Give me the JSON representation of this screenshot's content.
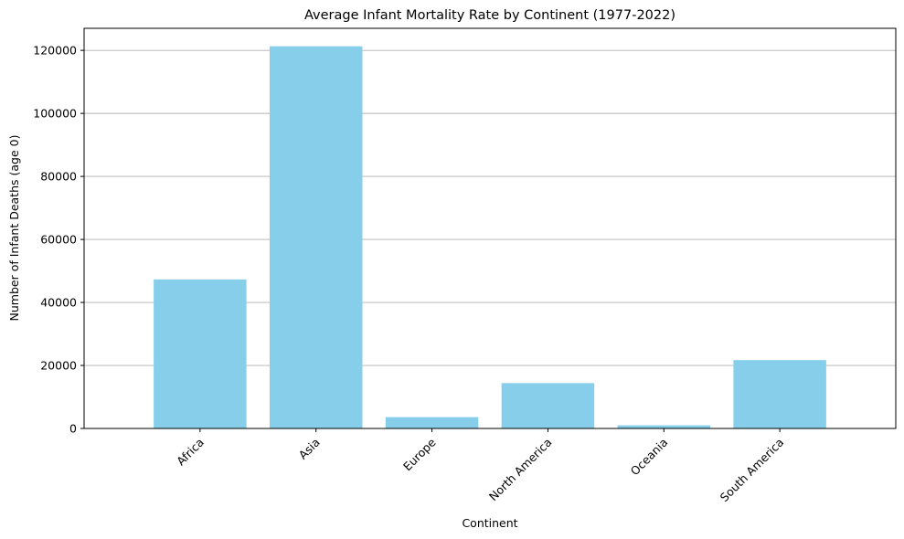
{
  "chart_data": {
    "type": "bar",
    "title": "Average Infant Mortality Rate by Continent (1977-2022)",
    "xlabel": "Continent",
    "ylabel": "Number of Infant Deaths (age 0)",
    "categories": [
      "Africa",
      "Asia",
      "Europe",
      "North America",
      "Oceania",
      "South America"
    ],
    "values": [
      47300,
      121300,
      3600,
      14400,
      1000,
      21700
    ],
    "ylim": [
      0,
      127000
    ],
    "yticks": [
      0,
      20000,
      40000,
      60000,
      80000,
      100000,
      120000
    ],
    "ytick_labels": [
      "0",
      "20000",
      "40000",
      "60000",
      "80000",
      "100000",
      "120000"
    ],
    "grid": "y-axis horizontal gridlines",
    "bar_color": "#87CEEB",
    "grid_color": "#b0b0b0"
  }
}
